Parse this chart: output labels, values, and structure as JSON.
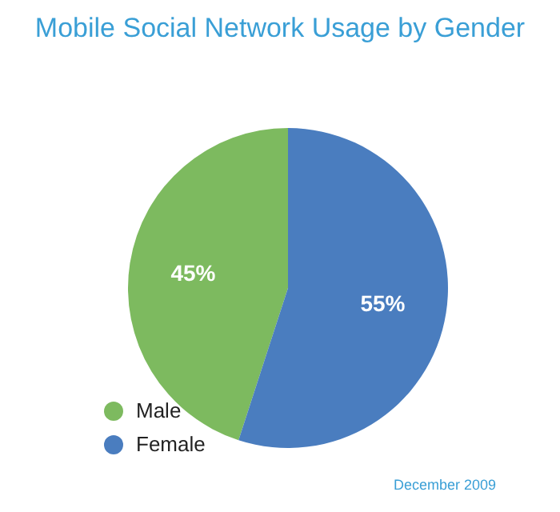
{
  "chart_data": {
    "type": "pie",
    "title": "Mobile Social Network Usage by Gender",
    "categories": [
      "Male",
      "Female"
    ],
    "values": [
      45,
      55
    ],
    "colors": [
      "#7dba5f",
      "#4a7dbf"
    ],
    "value_labels": [
      "45%",
      "55%"
    ],
    "legend": "bottom left",
    "annotations": [
      "December 2009"
    ]
  }
}
